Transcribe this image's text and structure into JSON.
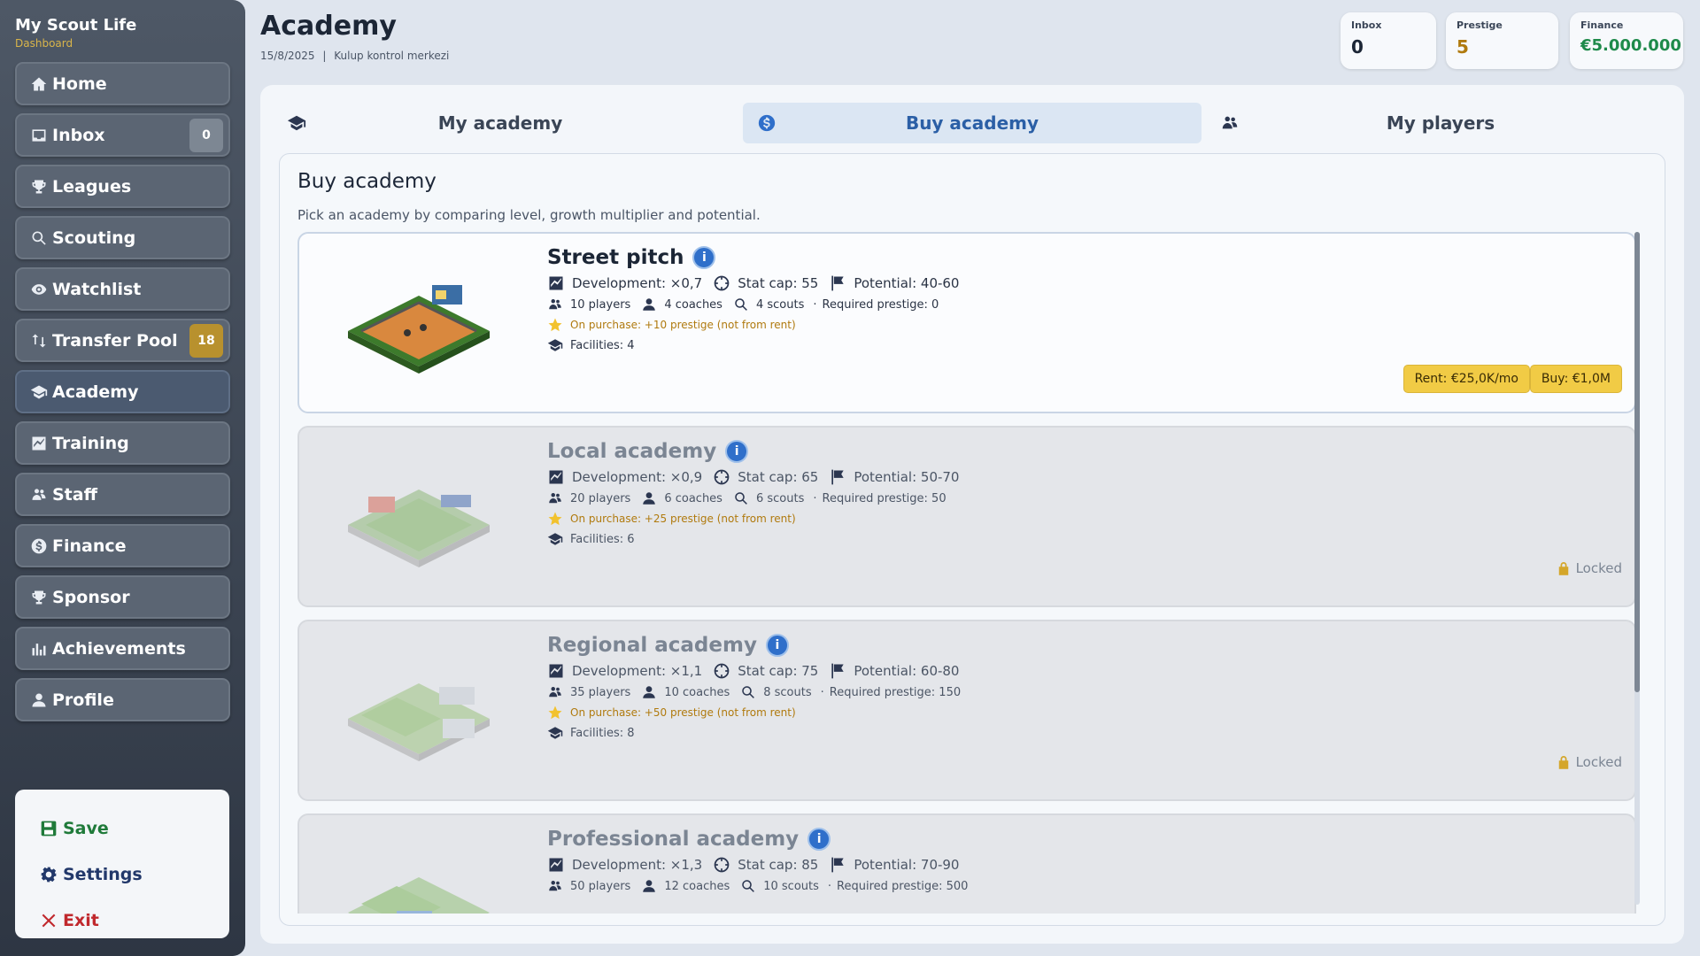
{
  "app": {
    "title": "My Scout Life",
    "subtitle": "Dashboard"
  },
  "sidebar": {
    "items": [
      {
        "label": "Home",
        "icon": "home-icon"
      },
      {
        "label": "Inbox",
        "icon": "inbox-icon",
        "badge": "0"
      },
      {
        "label": "Leagues",
        "icon": "trophy-icon"
      },
      {
        "label": "Scouting",
        "icon": "search-icon"
      },
      {
        "label": "Watchlist",
        "icon": "eye-icon"
      },
      {
        "label": "Transfer Pool",
        "icon": "transfer-icon",
        "badge": "18"
      },
      {
        "label": "Academy",
        "icon": "graduation-cap-icon",
        "active": true
      },
      {
        "label": "Training",
        "icon": "chart-icon"
      },
      {
        "label": "Staff",
        "icon": "staff-icon"
      },
      {
        "label": "Finance",
        "icon": "dollar-icon"
      },
      {
        "label": "Sponsor",
        "icon": "trophy-icon"
      },
      {
        "label": "Achievements",
        "icon": "bar-chart-icon"
      },
      {
        "label": "Profile",
        "icon": "user-icon"
      }
    ],
    "bottom": {
      "save": "Save",
      "settings": "Settings",
      "exit": "Exit"
    }
  },
  "header": {
    "title": "Academy",
    "date": "15/8/2025",
    "separator": "|",
    "subtitle": "Kulup kontrol merkezi",
    "stats": {
      "inbox": {
        "label": "Inbox",
        "value": "0"
      },
      "prestige": {
        "label": "Prestige",
        "value": "5"
      },
      "finance": {
        "label": "Finance",
        "value": "€5.000.000"
      }
    }
  },
  "tabs": {
    "my_academy": "My academy",
    "buy_academy": "Buy academy",
    "my_players": "My players",
    "active": "buy_academy"
  },
  "buy": {
    "title": "Buy academy",
    "description": "Pick an academy by comparing level, growth multiplier and potential.",
    "academies": [
      {
        "name": "Street pitch",
        "development": "Development: ×0,7",
        "stat_cap": "Stat cap: 55",
        "potential": "Potential: 40-60",
        "players": "10 players",
        "coaches": "4 coaches",
        "scouts": "4 scouts",
        "required": "Required prestige: 0",
        "purchase": "On purchase: +10 prestige (not from rent)",
        "facilities": "Facilities: 4",
        "rent": "Rent: €25,0K/mo",
        "buy": "Buy: €1,0M",
        "locked": false
      },
      {
        "name": "Local academy",
        "development": "Development: ×0,9",
        "stat_cap": "Stat cap: 65",
        "potential": "Potential: 50-70",
        "players": "20 players",
        "coaches": "6 coaches",
        "scouts": "6 scouts",
        "required": "Required prestige: 50",
        "purchase": "On purchase: +25 prestige (not from rent)",
        "facilities": "Facilities: 6",
        "locked": true,
        "locked_label": "Locked"
      },
      {
        "name": "Regional academy",
        "development": "Development: ×1,1",
        "stat_cap": "Stat cap: 75",
        "potential": "Potential: 60-80",
        "players": "35 players",
        "coaches": "10 coaches",
        "scouts": "8 scouts",
        "required": "Required prestige: 150",
        "purchase": "On purchase: +50 prestige (not from rent)",
        "facilities": "Facilities: 8",
        "locked": true,
        "locked_label": "Locked"
      },
      {
        "name": "Professional academy",
        "development": "Development: ×1,3",
        "stat_cap": "Stat cap: 85",
        "potential": "Potential: 70-90",
        "players": "50 players",
        "coaches": "12 coaches",
        "scouts": "10 scouts",
        "required": "Required prestige: 500",
        "locked": true
      }
    ]
  },
  "colors": {
    "accent": "#2f6fca",
    "gold": "#f1cb45",
    "sidebar": "#3a4350",
    "save": "#1f7a3a",
    "exit": "#c0282d"
  }
}
